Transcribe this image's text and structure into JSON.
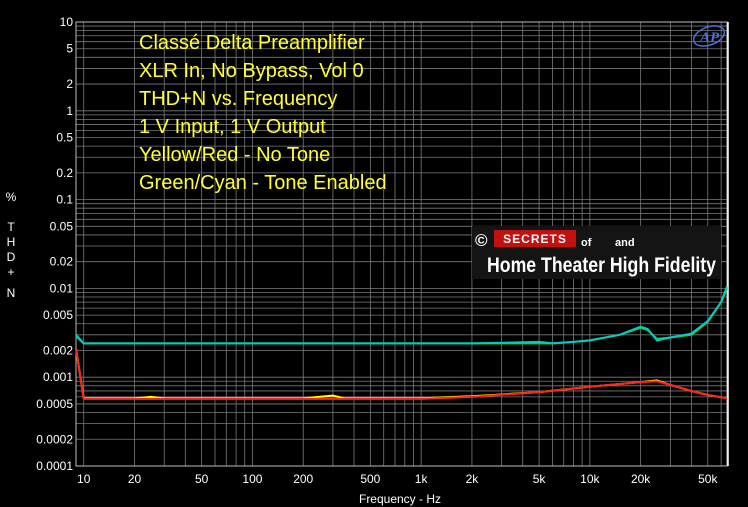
{
  "chart_data": {
    "type": "line",
    "title_lines": [
      "Classé Delta Preamplifier",
      "XLR In, No Bypass, Vol 0",
      "THD+N vs. Frequency",
      "1 V Input, 1 V Output",
      "Yellow/Red - No Tone",
      "Green/Cyan - Tone Enabled"
    ],
    "xlabel": "Frequency - Hz",
    "ylabel": [
      "%",
      "T",
      "H",
      "D",
      "+",
      "N"
    ],
    "xscale": "log",
    "yscale": "log",
    "xlim": [
      9,
      65000
    ],
    "ylim": [
      0.0001,
      10
    ],
    "grid": true,
    "x_ticks": [
      {
        "v": 10,
        "label": "10"
      },
      {
        "v": 20,
        "label": "20"
      },
      {
        "v": 50,
        "label": "50"
      },
      {
        "v": 100,
        "label": "100"
      },
      {
        "v": 200,
        "label": "200"
      },
      {
        "v": 500,
        "label": "500"
      },
      {
        "v": 1000,
        "label": "1k"
      },
      {
        "v": 2000,
        "label": "2k"
      },
      {
        "v": 5000,
        "label": "5k"
      },
      {
        "v": 10000,
        "label": "10k"
      },
      {
        "v": 20000,
        "label": "20k"
      },
      {
        "v": 50000,
        "label": "50k"
      }
    ],
    "y_ticks": [
      {
        "v": 10,
        "label": "10"
      },
      {
        "v": 5,
        "label": "5"
      },
      {
        "v": 2,
        "label": "2"
      },
      {
        "v": 1,
        "label": "1"
      },
      {
        "v": 0.5,
        "label": "0.5"
      },
      {
        "v": 0.2,
        "label": "0.2"
      },
      {
        "v": 0.1,
        "label": "0.1"
      },
      {
        "v": 0.05,
        "label": "0.05"
      },
      {
        "v": 0.02,
        "label": "0.02"
      },
      {
        "v": 0.01,
        "label": "0.01"
      },
      {
        "v": 0.005,
        "label": "0.005"
      },
      {
        "v": 0.002,
        "label": "0.002"
      },
      {
        "v": 0.001,
        "label": "0.001"
      },
      {
        "v": 0.0005,
        "label": "0.0005"
      },
      {
        "v": 0.0002,
        "label": "0.0002"
      },
      {
        "v": 0.0001,
        "label": "0.0001"
      }
    ],
    "series": [
      {
        "color": "#22cc22",
        "x": [
          9,
          10,
          15,
          20,
          50,
          100,
          200,
          500,
          1000,
          2000,
          5000,
          6000,
          8000,
          10000,
          15000,
          20000,
          22000,
          25000,
          30000,
          40000,
          50000,
          60000,
          65000
        ],
        "y": [
          0.0029,
          0.0024,
          0.0024,
          0.0024,
          0.0024,
          0.0024,
          0.0024,
          0.0024,
          0.0024,
          0.0024,
          0.0024,
          0.0024,
          0.0025,
          0.0026,
          0.003,
          0.0036,
          0.0034,
          0.0027,
          0.0028,
          0.003,
          0.0042,
          0.007,
          0.01
        ]
      },
      {
        "color": "#00cccc",
        "x": [
          9,
          10,
          15,
          20,
          50,
          100,
          200,
          500,
          1000,
          2000,
          5000,
          6000,
          8000,
          10000,
          15000,
          20000,
          22000,
          25000,
          30000,
          40000,
          50000,
          60000,
          65000
        ],
        "y": [
          0.003,
          0.0024,
          0.0024,
          0.0024,
          0.0024,
          0.0024,
          0.0024,
          0.0024,
          0.0024,
          0.0024,
          0.0025,
          0.0024,
          0.0025,
          0.0026,
          0.003,
          0.0037,
          0.0035,
          0.0026,
          0.0028,
          0.0031,
          0.0043,
          0.007,
          0.0105
        ]
      },
      {
        "color": "#ffff00",
        "x": [
          9,
          10,
          15,
          20,
          25,
          30,
          50,
          100,
          200,
          300,
          350,
          500,
          1000,
          2000,
          5000,
          10000,
          20000,
          25000,
          30000,
          40000,
          50000,
          65000
        ],
        "y": [
          0.0021,
          0.00058,
          0.00058,
          0.00058,
          0.0006,
          0.00058,
          0.00058,
          0.00058,
          0.00058,
          0.00062,
          0.00058,
          0.00058,
          0.00058,
          0.00061,
          0.00068,
          0.00078,
          0.00088,
          0.00092,
          0.00082,
          0.0007,
          0.00063,
          0.00058
        ]
      },
      {
        "color": "#ff2020",
        "x": [
          9,
          10,
          15,
          20,
          30,
          50,
          100,
          200,
          500,
          1000,
          2000,
          5000,
          10000,
          20000,
          25000,
          30000,
          40000,
          50000,
          65000
        ],
        "y": [
          0.0021,
          0.00057,
          0.00057,
          0.00057,
          0.00057,
          0.00057,
          0.00057,
          0.00057,
          0.00057,
          0.00057,
          0.0006,
          0.00068,
          0.00078,
          0.00088,
          0.0009,
          0.00082,
          0.0007,
          0.00063,
          0.00058
        ]
      }
    ]
  },
  "logo": {
    "copyright": "©",
    "secrets": "SECRETS",
    "of": "of",
    "and": "and",
    "line2": "Home Theater High Fidelity",
    "ap": "AP"
  }
}
